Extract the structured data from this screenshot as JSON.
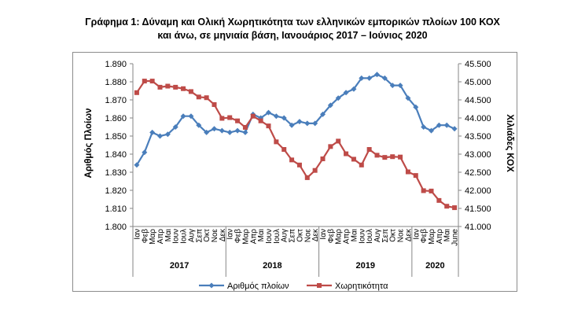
{
  "chart_data": {
    "type": "line",
    "title": "Γράφημα 1: Δύναμη και Ολική Χωρητικότητα των ελληνικών εμπορικών πλοίων 100 ΚΟΧ",
    "subtitle": "και άνω, σε μηνιαία βάση, Ιανουάριος 2017 – Ιούνιος 2020",
    "ylabel_left": "Αριθμός Πλοίων",
    "ylabel_right": "Χιλιάδες ΚΟΧ",
    "ylim_left": [
      1800,
      1890
    ],
    "ylim_right": [
      41000,
      45500
    ],
    "yticks_left": [
      "1.800",
      "1.810",
      "1.820",
      "1.830",
      "1.840",
      "1.850",
      "1.860",
      "1.870",
      "1.880",
      "1.890"
    ],
    "yticks_right": [
      "41.000",
      "41.500",
      "42.000",
      "42.500",
      "43.000",
      "43.500",
      "44.000",
      "44.500",
      "45.000",
      "45.500"
    ],
    "grid": false,
    "legend_position": "bottom",
    "categories": [
      "Ιαν",
      "Φεβ",
      "Μαρ",
      "Απρ",
      "Μαι",
      "Ιουν",
      "Ιουλ",
      "Αυγ",
      "Σεπ",
      "Οκτ",
      "Νοε",
      "Δεκ",
      "Ιαν",
      "Φεβ",
      "Μαρ",
      "Απρ",
      "Μαι",
      "Ιουν",
      "Ιουλ",
      "Αυγ",
      "Σεπ",
      "Οκτ",
      "Νοε",
      "Δεκ",
      "Ιαν",
      "Φεβ",
      "Μαρ",
      "Απρ",
      "Μαι",
      "Ιουν",
      "Ιουλ",
      "Αυγ",
      "Σεπ",
      "Οκτ",
      "Νοε",
      "Δεκ",
      "Ιαν",
      "Φεβ",
      "Μαρ",
      "Απρ",
      "Μαι",
      "June"
    ],
    "year_groups": [
      {
        "label": "2017",
        "count": 12
      },
      {
        "label": "2018",
        "count": 12
      },
      {
        "label": "2019",
        "count": 12
      },
      {
        "label": "2020",
        "count": 6
      }
    ],
    "series": [
      {
        "name": "Αριθμός πλοίων",
        "axis": "left",
        "color": "#4a7ebb",
        "marker": "diamond",
        "values": [
          1834,
          1841,
          1852,
          1850,
          1851,
          1855,
          1861,
          1861,
          1856,
          1852,
          1854,
          1853,
          1852,
          1853,
          1852,
          1862,
          1860,
          1863,
          1861,
          1860,
          1856,
          1858,
          1857,
          1857,
          1862,
          1867,
          1871,
          1874,
          1876,
          1882,
          1882,
          1884,
          1882,
          1878,
          1878,
          1871,
          1866,
          1855,
          1853,
          1856,
          1856,
          1854
        ]
      },
      {
        "name": "Χωρητικότητα",
        "axis": "right",
        "color": "#be4b48",
        "marker": "square",
        "values": [
          44700,
          45020,
          45020,
          44850,
          44880,
          44850,
          44810,
          44730,
          44580,
          44560,
          44370,
          43990,
          44010,
          43920,
          43740,
          44050,
          43920,
          43780,
          43340,
          43130,
          42840,
          42700,
          42350,
          42550,
          42870,
          43210,
          43360,
          43010,
          42860,
          42700,
          43130,
          42970,
          42910,
          42930,
          42920,
          42510,
          42410,
          41990,
          41980,
          41720,
          41560,
          41520
        ]
      }
    ]
  }
}
